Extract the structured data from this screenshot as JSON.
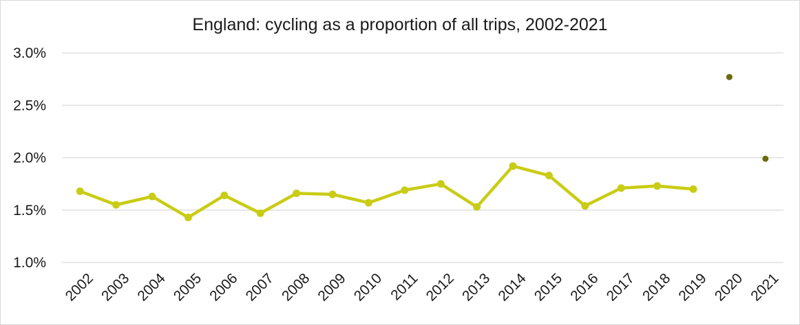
{
  "chart_data": {
    "type": "line",
    "title": "England: cycling as a proportion of all trips, 2002-2021",
    "xlabel": "",
    "ylabel": "",
    "x": [
      "2002",
      "2003",
      "2004",
      "2005",
      "2006",
      "2007",
      "2008",
      "2009",
      "2010",
      "2011",
      "2012",
      "2013",
      "2014",
      "2015",
      "2016",
      "2017",
      "2018",
      "2019",
      "2020",
      "2021"
    ],
    "ylim": [
      1.0,
      3.0
    ],
    "y_ticks": [
      1.0,
      1.5,
      2.0,
      2.5,
      3.0
    ],
    "y_tick_labels": [
      "1.0%",
      "1.5%",
      "2.0%",
      "2.5%",
      "3.0%"
    ],
    "grid": true,
    "legend": "none",
    "series": [
      {
        "style": "line-with-markers",
        "color": "#c9cc14",
        "x": [
          "2002",
          "2003",
          "2004",
          "2005",
          "2006",
          "2007",
          "2008",
          "2009",
          "2010",
          "2011",
          "2012",
          "2013",
          "2014",
          "2015",
          "2016",
          "2017",
          "2018",
          "2019"
        ],
        "values": [
          1.68,
          1.55,
          1.63,
          1.43,
          1.64,
          1.47,
          1.66,
          1.65,
          1.57,
          1.69,
          1.75,
          1.53,
          1.92,
          1.83,
          1.54,
          1.71,
          1.73,
          1.7
        ]
      },
      {
        "style": "markers-only",
        "color": "#6b6b0f",
        "x": [
          "2020",
          "2021"
        ],
        "values": [
          2.77,
          1.99
        ]
      }
    ]
  }
}
